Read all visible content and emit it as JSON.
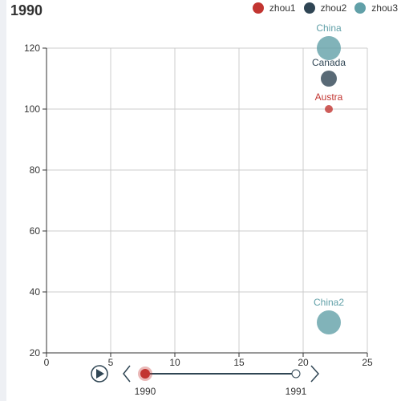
{
  "chart_data": {
    "type": "scatter",
    "title": "1990",
    "xlim": [
      0,
      25
    ],
    "ylim": [
      20,
      120
    ],
    "x_ticks": [
      0,
      5,
      10,
      15,
      20,
      25
    ],
    "y_ticks": [
      20,
      40,
      60,
      80,
      100,
      120
    ],
    "grid": true,
    "legend_position": "top-right",
    "series": [
      {
        "name": "zhou1",
        "color": "#c23531",
        "points": [
          {
            "x": 22,
            "y": 100,
            "label": "Austra",
            "size": "small"
          }
        ]
      },
      {
        "name": "zhou2",
        "color": "#2f4554",
        "points": [
          {
            "x": 22,
            "y": 110,
            "label": "Canada",
            "size": "medium"
          }
        ]
      },
      {
        "name": "zhou3",
        "color": "#61a0a8",
        "points": [
          {
            "x": 22,
            "y": 120,
            "label": "China",
            "size": "large"
          },
          {
            "x": 22,
            "y": 30,
            "label": "China2",
            "size": "large"
          }
        ]
      }
    ]
  },
  "timeline": {
    "years": [
      "1990",
      "1991"
    ],
    "current": "1990",
    "play_icon": "play-icon",
    "prev_icon": "chevron-left-icon",
    "next_icon": "chevron-right-icon"
  }
}
